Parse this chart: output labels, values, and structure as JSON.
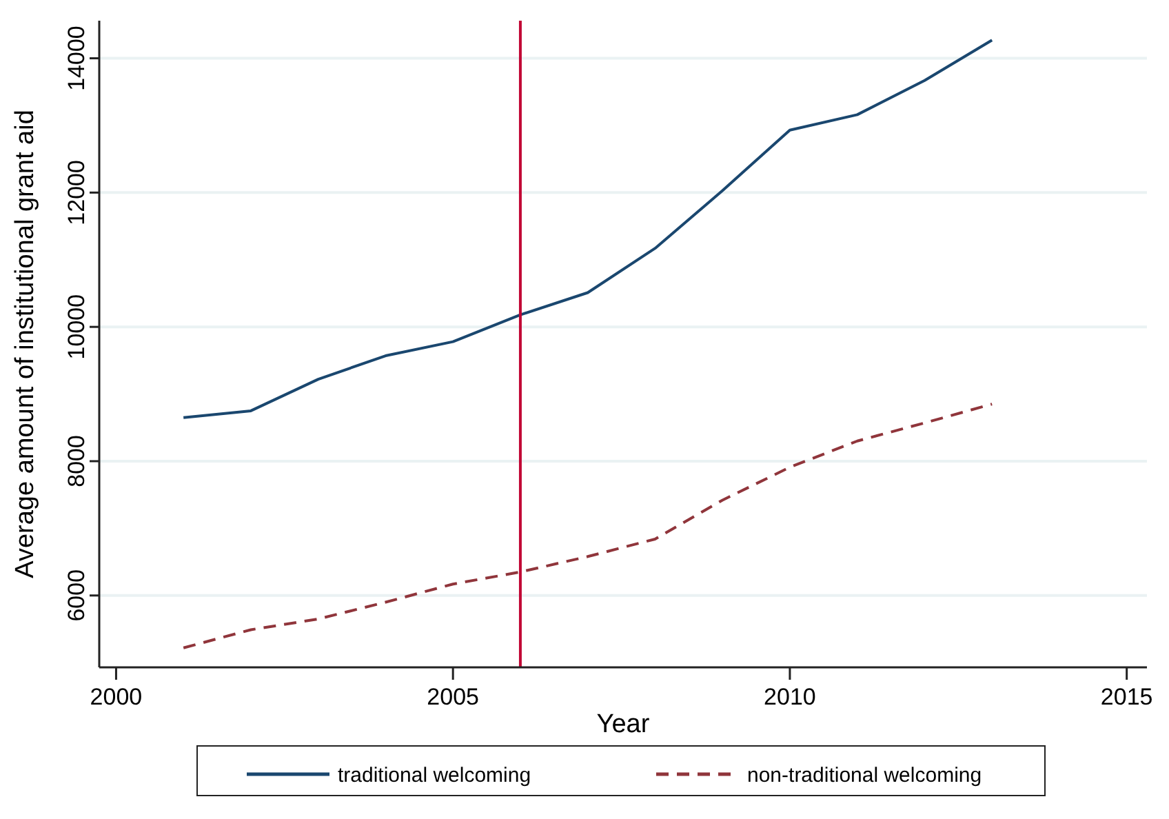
{
  "chart_data": {
    "type": "line",
    "xlabel": "Year",
    "ylabel": "Average amount of institutional grant aid",
    "x": [
      2001,
      2002,
      2003,
      2004,
      2005,
      2006,
      2007,
      2008,
      2009,
      2010,
      2011,
      2012,
      2013
    ],
    "series": [
      {
        "name": "traditional welcoming",
        "color": "#1a476f",
        "line_style": "solid",
        "values": [
          8650,
          8750,
          9220,
          9570,
          9780,
          10180,
          10510,
          11170,
          12030,
          12930,
          13160,
          13670,
          14270
        ]
      },
      {
        "name": "non-traditional welcoming",
        "color": "#90353b",
        "line_style": "dashed",
        "values": [
          5220,
          5490,
          5650,
          5900,
          6170,
          6350,
          6580,
          6840,
          7420,
          7910,
          8300,
          8570,
          8850
        ]
      }
    ],
    "xlim": [
      1999.75,
      2015.3
    ],
    "xticks": [
      2000,
      2005,
      2010,
      2015
    ],
    "ylim": [
      4930,
      14560
    ],
    "yticks": [
      6000,
      8000,
      10000,
      12000,
      14000
    ],
    "grid": "y",
    "legend": "bottom",
    "marker": "none",
    "ref_lines": [
      {
        "axis": "x",
        "value": 2006,
        "color": "#c10534"
      }
    ]
  }
}
